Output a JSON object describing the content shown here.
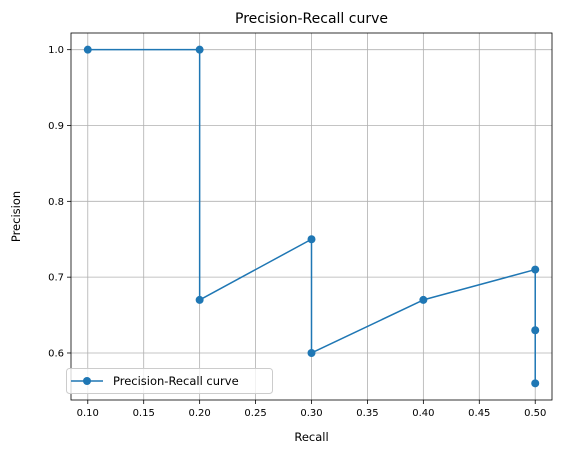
{
  "chart_data": {
    "type": "line",
    "title": "Precision-Recall curve",
    "xlabel": "Recall",
    "ylabel": "Precision",
    "xlim": [
      0.085,
      0.515
    ],
    "ylim": [
      0.538,
      1.022
    ],
    "xticks": [
      0.1,
      0.15,
      0.2,
      0.25,
      0.3,
      0.35,
      0.4,
      0.45,
      0.5
    ],
    "xtick_labels": [
      "0.10",
      "0.15",
      "0.20",
      "0.25",
      "0.30",
      "0.35",
      "0.40",
      "0.45",
      "0.50"
    ],
    "yticks": [
      0.6,
      0.7,
      0.8,
      0.9,
      1.0
    ],
    "ytick_labels": [
      "0.6",
      "0.7",
      "0.8",
      "0.9",
      "1.0"
    ],
    "grid": true,
    "legend_position": "bottom-left",
    "series": [
      {
        "name": "Precision-Recall curve",
        "color": "#1f77b4",
        "x": [
          0.1,
          0.2,
          0.2,
          0.3,
          0.3,
          0.4,
          0.5,
          0.5,
          0.5
        ],
        "y": [
          1.0,
          1.0,
          0.67,
          0.75,
          0.6,
          0.67,
          0.71,
          0.63,
          0.56
        ]
      }
    ]
  }
}
